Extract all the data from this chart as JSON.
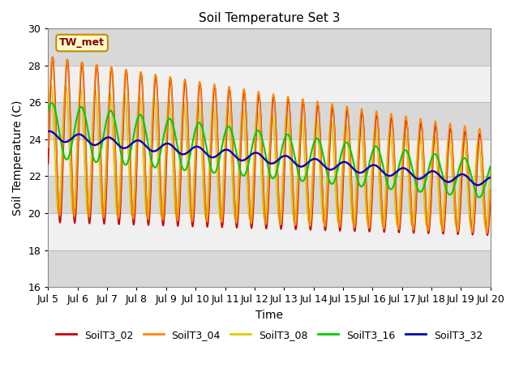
{
  "title": "Soil Temperature Set 3",
  "xlabel": "Time",
  "ylabel": "Soil Temperature (C)",
  "ylim": [
    16,
    30
  ],
  "xlim_days": [
    0,
    15
  ],
  "annotation": "TW_met",
  "bg_color": "#e8e8e8",
  "band_color_dark": "#d8d8d8",
  "band_color_light": "#f0f0f0",
  "series": {
    "SoilT3_02": {
      "color": "#cc0000"
    },
    "SoilT3_04": {
      "color": "#ff8800"
    },
    "SoilT3_08": {
      "color": "#ddcc00"
    },
    "SoilT3_16": {
      "color": "#00cc00"
    },
    "SoilT3_32": {
      "color": "#0000bb"
    }
  },
  "xtick_labels": [
    "Jul 5",
    "Jul 6",
    "Jul 7",
    "Jul 8",
    "Jul 9",
    "Jul 10",
    "Jul 11",
    "Jul 12",
    "Jul 13",
    "Jul 14",
    "Jul 15",
    "Jul 16",
    "Jul 17",
    "Jul 18",
    "Jul 19",
    "Jul 20"
  ],
  "xtick_positions": [
    0,
    1,
    2,
    3,
    4,
    5,
    6,
    7,
    8,
    9,
    10,
    11,
    12,
    13,
    14,
    15
  ],
  "yticks": [
    16,
    18,
    20,
    22,
    24,
    26,
    28,
    30
  ]
}
